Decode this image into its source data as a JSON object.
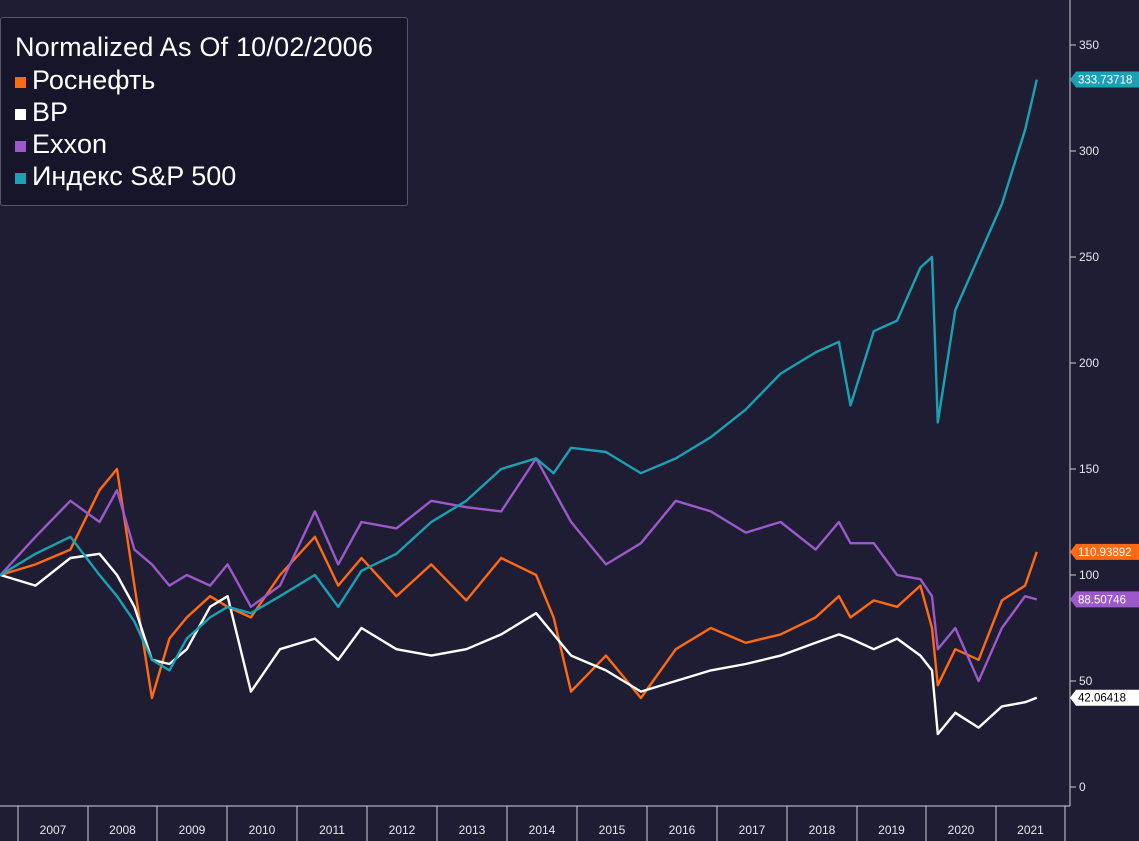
{
  "chart_data": {
    "type": "line",
    "title": "Normalized As Of 10/02/2006",
    "x_ticks": [
      "2007",
      "2008",
      "2009",
      "2010",
      "2011",
      "2012",
      "2013",
      "2014",
      "2015",
      "2016",
      "2017",
      "2018",
      "2019",
      "2020",
      "2021"
    ],
    "y_ticks": [
      0,
      50,
      100,
      150,
      200,
      250,
      300,
      350
    ],
    "ylim": [
      -5,
      370
    ],
    "grid": false,
    "legend_position": "top-left",
    "x": [
      "2006-10",
      "2007-04",
      "2007-10",
      "2008-03",
      "2008-06",
      "2008-09",
      "2008-12",
      "2009-03",
      "2009-06",
      "2009-10",
      "2010-01",
      "2010-05",
      "2010-10",
      "2011-04",
      "2011-08",
      "2011-12",
      "2012-06",
      "2012-12",
      "2013-06",
      "2013-12",
      "2014-06",
      "2014-09",
      "2014-12",
      "2015-06",
      "2015-12",
      "2016-06",
      "2016-12",
      "2017-06",
      "2017-12",
      "2018-06",
      "2018-10",
      "2018-12",
      "2019-04",
      "2019-08",
      "2019-12",
      "2020-02",
      "2020-03",
      "2020-06",
      "2020-10",
      "2021-02",
      "2021-06",
      "2021-08"
    ],
    "series": [
      {
        "name": "Роснефть",
        "color": "#ff6a13",
        "last_label": "110.93892",
        "values": [
          100,
          105,
          112,
          140,
          150,
          95,
          42,
          70,
          80,
          90,
          85,
          80,
          100,
          118,
          95,
          108,
          90,
          105,
          88,
          108,
          100,
          80,
          45,
          62,
          42,
          65,
          75,
          68,
          72,
          80,
          90,
          80,
          88,
          85,
          95,
          75,
          48,
          65,
          60,
          88,
          95,
          110.9
        ]
      },
      {
        "name": "BP",
        "color": "#ffffff",
        "last_label": "42.06418",
        "values": [
          100,
          95,
          108,
          110,
          100,
          85,
          60,
          58,
          65,
          85,
          90,
          45,
          65,
          70,
          60,
          75,
          65,
          62,
          65,
          72,
          82,
          72,
          62,
          55,
          45,
          50,
          55,
          58,
          62,
          68,
          72,
          70,
          65,
          70,
          62,
          55,
          25,
          35,
          28,
          38,
          40,
          42.1
        ]
      },
      {
        "name": "Exxon",
        "color": "#9b59c9",
        "last_label": "88.50746",
        "values": [
          100,
          118,
          135,
          125,
          140,
          112,
          105,
          95,
          100,
          95,
          105,
          85,
          95,
          130,
          105,
          125,
          122,
          135,
          132,
          130,
          155,
          140,
          125,
          105,
          115,
          135,
          130,
          120,
          125,
          112,
          125,
          115,
          115,
          100,
          98,
          90,
          65,
          75,
          50,
          75,
          90,
          88.5
        ]
      },
      {
        "name": "Индекс S&P 500",
        "color": "#1aa1b3",
        "last_label": "333.73718",
        "values": [
          100,
          110,
          118,
          100,
          90,
          78,
          60,
          55,
          70,
          80,
          85,
          82,
          90,
          100,
          85,
          102,
          110,
          125,
          135,
          150,
          155,
          148,
          160,
          158,
          148,
          155,
          165,
          178,
          195,
          205,
          210,
          180,
          215,
          220,
          245,
          250,
          172,
          225,
          250,
          275,
          310,
          333.7
        ]
      }
    ]
  }
}
